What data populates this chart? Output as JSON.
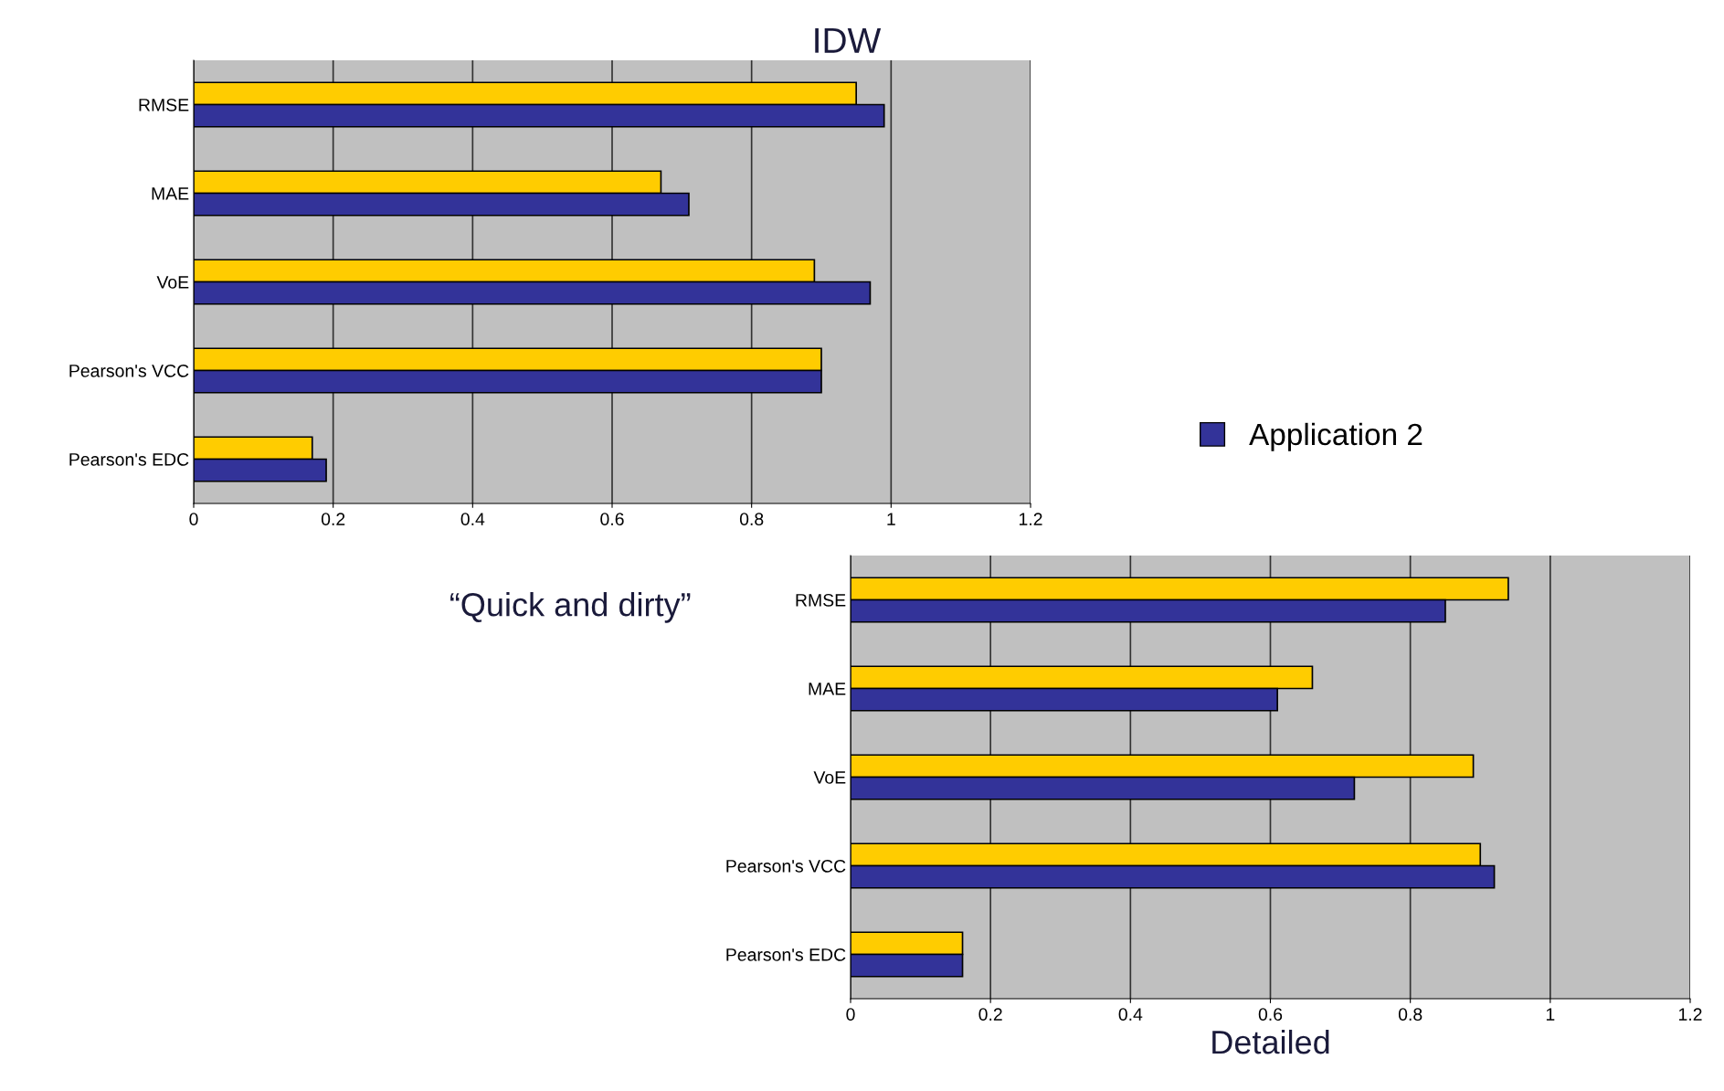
{
  "chart_data": [
    {
      "type": "bar",
      "orientation": "horizontal",
      "title": "IDW",
      "xlabel": "“Quick and dirty”",
      "categories": [
        "RMSE",
        "MAE",
        "VoE",
        "Pearson's VCC",
        "Pearson's EDC"
      ],
      "series": [
        {
          "color": "#ffcc00",
          "values": [
            0.95,
            0.67,
            0.89,
            0.9,
            0.17
          ]
        },
        {
          "name": "Application 2",
          "color": "#333399",
          "values": [
            0.99,
            0.71,
            0.97,
            0.9,
            0.19
          ]
        }
      ],
      "xlim": [
        0,
        1.2
      ],
      "xticks": [
        0,
        0.2,
        0.4,
        0.6,
        0.8,
        1,
        1.2
      ],
      "grid": "x",
      "legend": "right"
    },
    {
      "type": "bar",
      "orientation": "horizontal",
      "xlabel": "Detailed",
      "categories": [
        "RMSE",
        "MAE",
        "VoE",
        "Pearson's VCC",
        "Pearson's EDC"
      ],
      "series": [
        {
          "color": "#ffcc00",
          "values": [
            0.94,
            0.66,
            0.89,
            0.9,
            0.16
          ]
        },
        {
          "color": "#333399",
          "values": [
            0.85,
            0.61,
            0.72,
            0.92,
            0.16
          ]
        }
      ],
      "xlim": [
        0,
        1.2
      ],
      "xticks": [
        0,
        0.2,
        0.4,
        0.6,
        0.8,
        1,
        1.2
      ],
      "grid": "x"
    }
  ]
}
